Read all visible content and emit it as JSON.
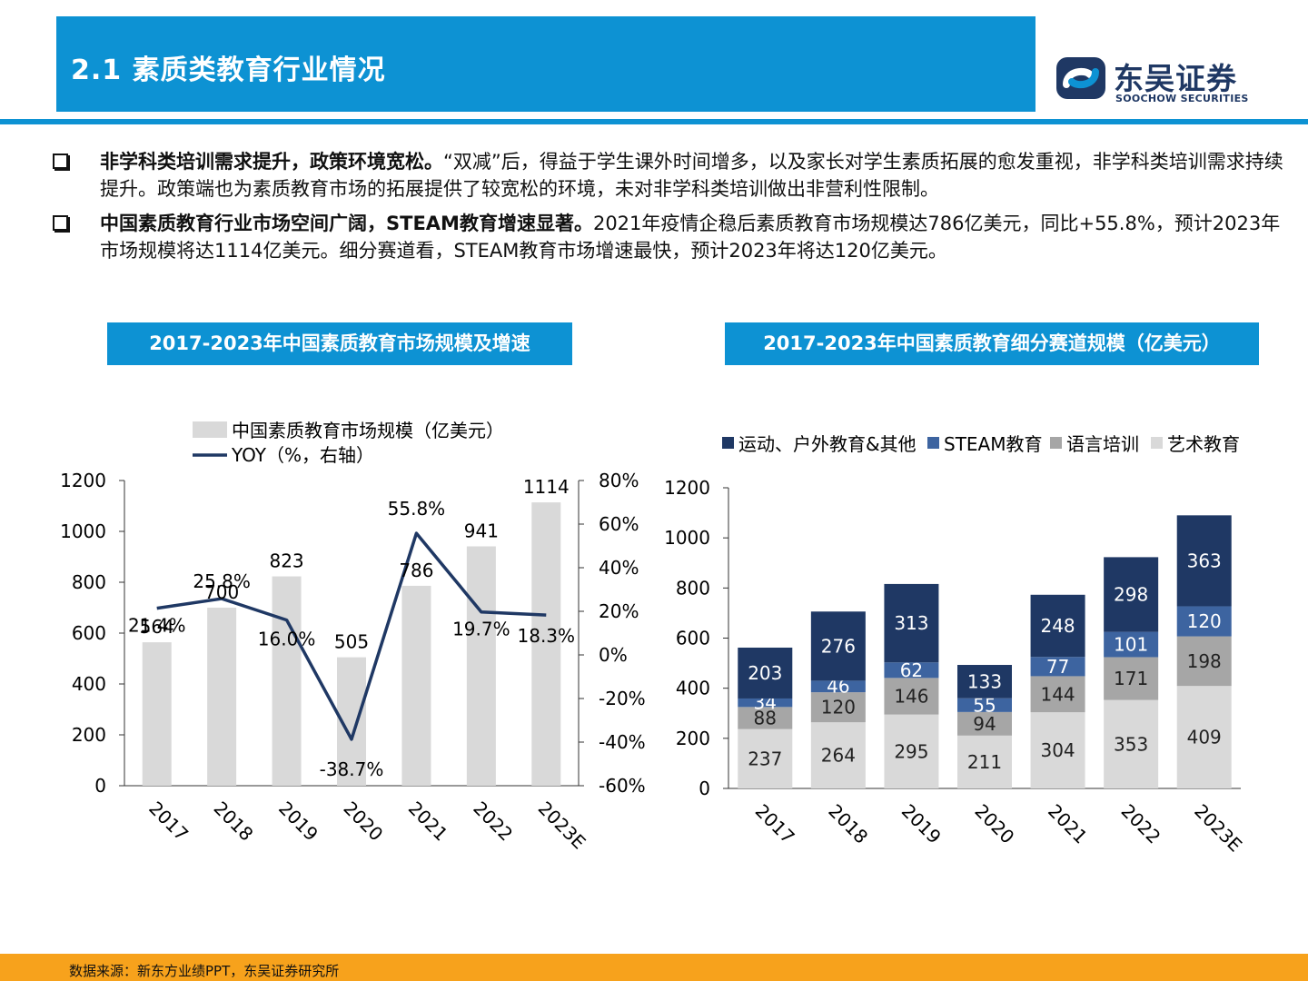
{
  "header": {
    "title": "2.1 素质类教育行业情况"
  },
  "logo": {
    "cn": "东吴证券",
    "en": "SOOCHOW SECURITIES"
  },
  "bullets": [
    {
      "lead": "非学科类培训需求提升，政策环境宽松。",
      "body": "“双减”后，得益于学生课外时间增多，以及家长对学生素质拓展的愈发重视，非学科类培训需求持续提升。政策端也为素质教育市场的拓展提供了较宽松的环境，未对非学科类培训做出非营利性限制。"
    },
    {
      "lead": "中国素质教育行业市场空间广阔，STEAM教育增速显著。",
      "body": "2021年疫情企稳后素质教育市场规模达786亿美元，同比+55.8%，预计2023年市场规模将达1114亿美元。细分赛道看，STEAM教育市场增速最快，预计2023年将达120亿美元。"
    }
  ],
  "chart_data": [
    {
      "type": "bar",
      "title": "2017-2023年中国素质教育市场规模及增速",
      "categories": [
        "2017",
        "2018",
        "2019",
        "2020",
        "2021",
        "2022",
        "2023E"
      ],
      "series": [
        {
          "name": "中国素质教育市场规模（亿美元）",
          "type": "bar",
          "values": [
            564,
            700,
            823,
            505,
            786,
            941,
            1114
          ],
          "labels": [
            "564",
            "700",
            "823",
            "505",
            "786",
            "941",
            "1114"
          ],
          "color": "#d9d9d9"
        },
        {
          "name": "YOY（%，右轴）",
          "type": "line",
          "values": [
            21.4,
            25.8,
            16.0,
            -38.7,
            55.8,
            19.7,
            18.3
          ],
          "labels": [
            "21.4%",
            "25.8%",
            "16.0%",
            "-38.7%",
            "55.8%",
            "19.7%",
            "18.3%"
          ],
          "color": "#1f3864"
        }
      ],
      "ylim": [
        0,
        1200
      ],
      "yticks": [
        "0",
        "200",
        "400",
        "600",
        "800",
        "1000",
        "1200"
      ],
      "y2lim": [
        -60,
        80
      ],
      "y2ticks": [
        "-60%",
        "-40%",
        "-20%",
        "0%",
        "20%",
        "40%",
        "60%",
        "80%"
      ],
      "legend": "top-left",
      "grid": false
    },
    {
      "type": "bar",
      "stacked": true,
      "title": "2017-2023年中国素质教育细分赛道规模（亿美元）",
      "categories": [
        "2017",
        "2018",
        "2019",
        "2020",
        "2021",
        "2022",
        "2023E"
      ],
      "series": [
        {
          "name": "艺术教育",
          "values": [
            237,
            264,
            295,
            211,
            304,
            353,
            409
          ],
          "color": "#d9d9d9"
        },
        {
          "name": "语言培训",
          "values": [
            88,
            120,
            146,
            94,
            144,
            171,
            198
          ],
          "color": "#a6a6a6"
        },
        {
          "name": "STEAM教育",
          "values": [
            34,
            46,
            62,
            55,
            77,
            101,
            120
          ],
          "color": "#3d64a0"
        },
        {
          "name": "运动、户外教育&其他",
          "values": [
            203,
            276,
            313,
            133,
            248,
            298,
            363
          ],
          "color": "#1f3864"
        }
      ],
      "legend_order": [
        "运动、户外教育&其他",
        "STEAM教育",
        "语言培训",
        "艺术教育"
      ],
      "ylim": [
        0,
        1200
      ],
      "yticks": [
        "0",
        "200",
        "400",
        "600",
        "800",
        "1000",
        "1200"
      ],
      "legend": "top",
      "grid": false
    }
  ],
  "footer": {
    "source": "数据来源：新东方业绩PPT，东吴证券研究所"
  }
}
